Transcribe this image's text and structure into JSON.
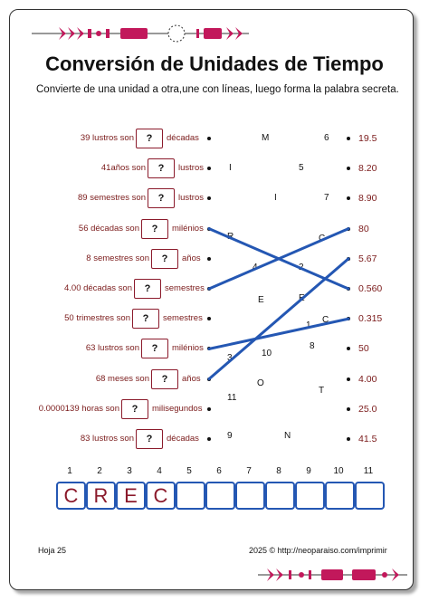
{
  "title": "Conversión de Unidades de Tiempo",
  "instructions": "Convierte de una unidad a otra,une con líneas, luego forma la palabra secreta.",
  "placeholder": "?",
  "rows": [
    {
      "left": "39 lustros son",
      "unit": "décadas",
      "answer": "19.5"
    },
    {
      "left": "41años son",
      "unit": "lustros",
      "answer": "8.20"
    },
    {
      "left": "89 semestres son",
      "unit": "lustros",
      "answer": "8.90"
    },
    {
      "left": "56 décadas son",
      "unit": "milénios",
      "answer": "80"
    },
    {
      "left": "8 semestres son",
      "unit": "años",
      "answer": "5.67"
    },
    {
      "left": "4.00 décadas son",
      "unit": "semestres",
      "answer": "0.560"
    },
    {
      "left": "50 trimestres son",
      "unit": "semestres",
      "answer": "0.315"
    },
    {
      "left": "63 lustros son",
      "unit": "milénios",
      "answer": "50"
    },
    {
      "left": "68 meses son",
      "unit": "años",
      "answer": "4.00"
    },
    {
      "left": "0.0000139 horas son",
      "unit": "milisegundos",
      "answer": "25.0"
    },
    {
      "left": "83 lustros son",
      "unit": "décadas",
      "answer": "41.5"
    }
  ],
  "grid_letters": [
    {
      "t": "M"
    },
    {
      "t": "6"
    },
    {
      "t": "I"
    },
    {
      "t": "5"
    },
    {
      "t": "I"
    },
    {
      "t": "7"
    },
    {
      "t": "R"
    },
    {
      "t": "C"
    },
    {
      "t": "4"
    },
    {
      "t": "2"
    },
    {
      "t": "E"
    },
    {
      "t": "E"
    },
    {
      "t": "1"
    },
    {
      "t": "C"
    },
    {
      "t": "10"
    },
    {
      "t": "8"
    },
    {
      "t": "3"
    },
    {
      "t": "O"
    },
    {
      "t": "T"
    },
    {
      "t": "11"
    },
    {
      "t": "9"
    },
    {
      "t": "N"
    }
  ],
  "connections": [
    {
      "from_row": 4,
      "to_row": 6
    },
    {
      "from_row": 6,
      "to_row": 4
    },
    {
      "from_row": 8,
      "to_row": 7
    },
    {
      "from_row": 9,
      "to_row": 5
    }
  ],
  "secret": {
    "numbers": [
      "1",
      "2",
      "3",
      "4",
      "5",
      "6",
      "7",
      "8",
      "9",
      "10",
      "11"
    ],
    "letters": [
      "C",
      "R",
      "E",
      "C",
      "",
      "",
      "",
      "",
      "",
      "",
      ""
    ]
  },
  "footer": {
    "page": "Hoja 25",
    "credit": "2025 ©  http://neoparaiso.com/imprimir"
  },
  "colors": {
    "accent": "#8b1a2b",
    "line": "#2457b3",
    "deco": "#c2185b"
  }
}
